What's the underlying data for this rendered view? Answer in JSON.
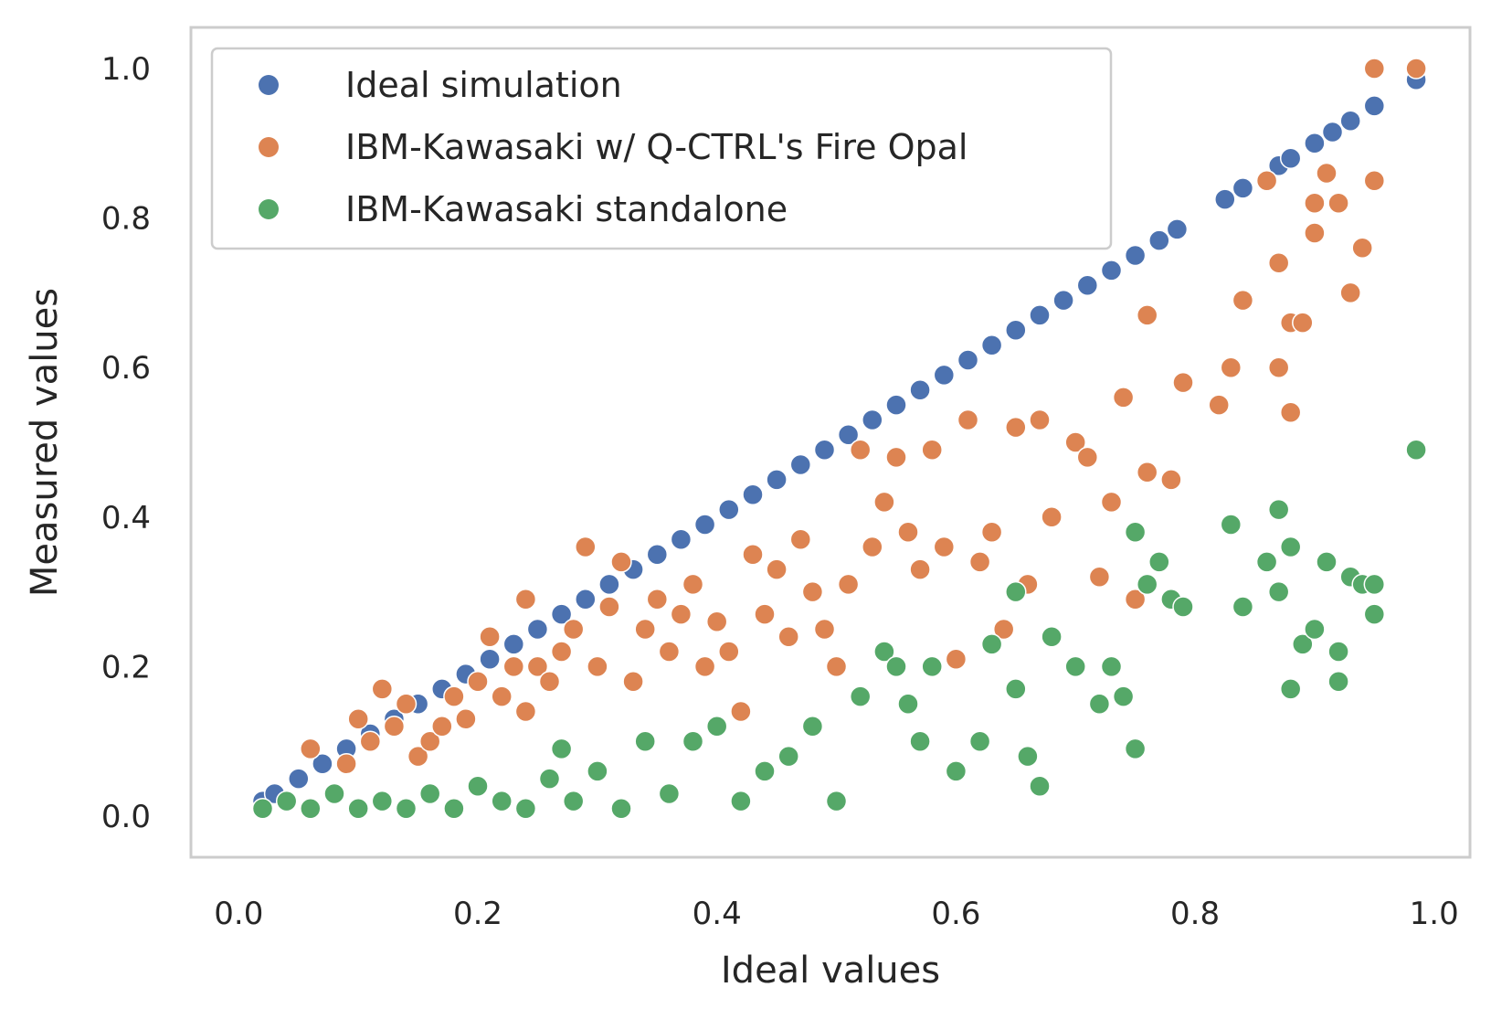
{
  "chart_data": {
    "type": "scatter",
    "title": "",
    "xlabel": "Ideal values",
    "ylabel": "Measured values",
    "xlim": [
      -0.04,
      1.03
    ],
    "ylim": [
      -0.055,
      1.055
    ],
    "grid": false,
    "legend_position": "top-left",
    "x_ticks": [
      0.0,
      0.2,
      0.4,
      0.6,
      0.8,
      1.0
    ],
    "x_tick_labels": [
      "0.0",
      "0.2",
      "0.4",
      "0.6",
      "0.8",
      "1.0"
    ],
    "y_ticks": [
      0.0,
      0.2,
      0.4,
      0.6,
      0.8,
      1.0
    ],
    "y_tick_labels": [
      "0.0",
      "0.2",
      "0.4",
      "0.6",
      "0.8",
      "1.0"
    ],
    "series": [
      {
        "name": "Ideal simulation",
        "color": "#4c72b0",
        "points": [
          [
            0.02,
            0.02
          ],
          [
            0.03,
            0.03
          ],
          [
            0.05,
            0.05
          ],
          [
            0.07,
            0.07
          ],
          [
            0.09,
            0.09
          ],
          [
            0.11,
            0.11
          ],
          [
            0.13,
            0.13
          ],
          [
            0.15,
            0.15
          ],
          [
            0.17,
            0.17
          ],
          [
            0.19,
            0.19
          ],
          [
            0.21,
            0.21
          ],
          [
            0.23,
            0.23
          ],
          [
            0.25,
            0.25
          ],
          [
            0.27,
            0.27
          ],
          [
            0.29,
            0.29
          ],
          [
            0.31,
            0.31
          ],
          [
            0.33,
            0.33
          ],
          [
            0.35,
            0.35
          ],
          [
            0.37,
            0.37
          ],
          [
            0.39,
            0.39
          ],
          [
            0.41,
            0.41
          ],
          [
            0.43,
            0.43
          ],
          [
            0.45,
            0.45
          ],
          [
            0.47,
            0.47
          ],
          [
            0.49,
            0.49
          ],
          [
            0.51,
            0.51
          ],
          [
            0.53,
            0.53
          ],
          [
            0.55,
            0.55
          ],
          [
            0.57,
            0.57
          ],
          [
            0.59,
            0.59
          ],
          [
            0.61,
            0.61
          ],
          [
            0.63,
            0.63
          ],
          [
            0.65,
            0.65
          ],
          [
            0.67,
            0.67
          ],
          [
            0.69,
            0.69
          ],
          [
            0.71,
            0.71
          ],
          [
            0.73,
            0.73
          ],
          [
            0.75,
            0.75
          ],
          [
            0.77,
            0.77
          ],
          [
            0.785,
            0.785
          ],
          [
            0.825,
            0.825
          ],
          [
            0.84,
            0.84
          ],
          [
            0.87,
            0.87
          ],
          [
            0.88,
            0.88
          ],
          [
            0.9,
            0.9
          ],
          [
            0.915,
            0.915
          ],
          [
            0.93,
            0.93
          ],
          [
            0.95,
            0.95
          ],
          [
            0.985,
            0.985
          ]
        ]
      },
      {
        "name": "IBM-Kawasaki w/ Q-CTRL's Fire Opal",
        "color": "#dd8452",
        "points": [
          [
            0.06,
            0.09
          ],
          [
            0.09,
            0.07
          ],
          [
            0.1,
            0.13
          ],
          [
            0.11,
            0.1
          ],
          [
            0.12,
            0.17
          ],
          [
            0.13,
            0.12
          ],
          [
            0.14,
            0.15
          ],
          [
            0.15,
            0.08
          ],
          [
            0.16,
            0.1
          ],
          [
            0.17,
            0.12
          ],
          [
            0.18,
            0.16
          ],
          [
            0.19,
            0.13
          ],
          [
            0.2,
            0.18
          ],
          [
            0.21,
            0.24
          ],
          [
            0.22,
            0.16
          ],
          [
            0.23,
            0.2
          ],
          [
            0.24,
            0.14
          ],
          [
            0.24,
            0.29
          ],
          [
            0.25,
            0.2
          ],
          [
            0.26,
            0.18
          ],
          [
            0.27,
            0.22
          ],
          [
            0.28,
            0.25
          ],
          [
            0.29,
            0.36
          ],
          [
            0.3,
            0.2
          ],
          [
            0.31,
            0.28
          ],
          [
            0.32,
            0.34
          ],
          [
            0.33,
            0.18
          ],
          [
            0.34,
            0.25
          ],
          [
            0.35,
            0.29
          ],
          [
            0.36,
            0.22
          ],
          [
            0.37,
            0.27
          ],
          [
            0.38,
            0.31
          ],
          [
            0.39,
            0.2
          ],
          [
            0.4,
            0.26
          ],
          [
            0.41,
            0.22
          ],
          [
            0.42,
            0.14
          ],
          [
            0.43,
            0.35
          ],
          [
            0.44,
            0.27
          ],
          [
            0.45,
            0.33
          ],
          [
            0.46,
            0.24
          ],
          [
            0.47,
            0.37
          ],
          [
            0.48,
            0.3
          ],
          [
            0.49,
            0.25
          ],
          [
            0.5,
            0.2
          ],
          [
            0.51,
            0.31
          ],
          [
            0.52,
            0.49
          ],
          [
            0.53,
            0.36
          ],
          [
            0.54,
            0.42
          ],
          [
            0.55,
            0.48
          ],
          [
            0.56,
            0.38
          ],
          [
            0.57,
            0.33
          ],
          [
            0.58,
            0.49
          ],
          [
            0.59,
            0.36
          ],
          [
            0.6,
            0.21
          ],
          [
            0.61,
            0.53
          ],
          [
            0.62,
            0.34
          ],
          [
            0.63,
            0.38
          ],
          [
            0.64,
            0.25
          ],
          [
            0.65,
            0.52
          ],
          [
            0.66,
            0.31
          ],
          [
            0.67,
            0.53
          ],
          [
            0.68,
            0.4
          ],
          [
            0.7,
            0.5
          ],
          [
            0.71,
            0.48
          ],
          [
            0.72,
            0.32
          ],
          [
            0.73,
            0.42
          ],
          [
            0.74,
            0.56
          ],
          [
            0.75,
            0.29
          ],
          [
            0.76,
            0.46
          ],
          [
            0.76,
            0.67
          ],
          [
            0.78,
            0.45
          ],
          [
            0.79,
            0.58
          ],
          [
            0.82,
            0.55
          ],
          [
            0.83,
            0.6
          ],
          [
            0.84,
            0.69
          ],
          [
            0.86,
            0.85
          ],
          [
            0.87,
            0.74
          ],
          [
            0.87,
            0.6
          ],
          [
            0.88,
            0.66
          ],
          [
            0.88,
            0.54
          ],
          [
            0.89,
            0.66
          ],
          [
            0.9,
            0.82
          ],
          [
            0.9,
            0.78
          ],
          [
            0.91,
            0.86
          ],
          [
            0.92,
            0.82
          ],
          [
            0.93,
            0.7
          ],
          [
            0.94,
            0.76
          ],
          [
            0.95,
            0.85
          ],
          [
            0.95,
            1.0
          ],
          [
            0.985,
            1.0
          ]
        ]
      },
      {
        "name": "IBM-Kawasaki standalone",
        "color": "#55a868",
        "points": [
          [
            0.02,
            0.01
          ],
          [
            0.04,
            0.02
          ],
          [
            0.06,
            0.01
          ],
          [
            0.08,
            0.03
          ],
          [
            0.1,
            0.01
          ],
          [
            0.12,
            0.02
          ],
          [
            0.14,
            0.01
          ],
          [
            0.16,
            0.03
          ],
          [
            0.18,
            0.01
          ],
          [
            0.2,
            0.04
          ],
          [
            0.22,
            0.02
          ],
          [
            0.24,
            0.01
          ],
          [
            0.26,
            0.05
          ],
          [
            0.27,
            0.09
          ],
          [
            0.28,
            0.02
          ],
          [
            0.3,
            0.06
          ],
          [
            0.32,
            0.01
          ],
          [
            0.34,
            0.1
          ],
          [
            0.36,
            0.03
          ],
          [
            0.38,
            0.1
          ],
          [
            0.4,
            0.12
          ],
          [
            0.42,
            0.02
          ],
          [
            0.44,
            0.06
          ],
          [
            0.46,
            0.08
          ],
          [
            0.48,
            0.12
          ],
          [
            0.5,
            0.02
          ],
          [
            0.52,
            0.16
          ],
          [
            0.54,
            0.22
          ],
          [
            0.55,
            0.2
          ],
          [
            0.56,
            0.15
          ],
          [
            0.57,
            0.1
          ],
          [
            0.58,
            0.2
          ],
          [
            0.6,
            0.06
          ],
          [
            0.62,
            0.1
          ],
          [
            0.63,
            0.23
          ],
          [
            0.65,
            0.3
          ],
          [
            0.65,
            0.17
          ],
          [
            0.66,
            0.08
          ],
          [
            0.67,
            0.04
          ],
          [
            0.68,
            0.24
          ],
          [
            0.7,
            0.2
          ],
          [
            0.72,
            0.15
          ],
          [
            0.73,
            0.2
          ],
          [
            0.74,
            0.16
          ],
          [
            0.75,
            0.38
          ],
          [
            0.75,
            0.09
          ],
          [
            0.76,
            0.31
          ],
          [
            0.77,
            0.34
          ],
          [
            0.78,
            0.29
          ],
          [
            0.79,
            0.28
          ],
          [
            0.83,
            0.39
          ],
          [
            0.84,
            0.28
          ],
          [
            0.86,
            0.34
          ],
          [
            0.87,
            0.41
          ],
          [
            0.87,
            0.3
          ],
          [
            0.88,
            0.36
          ],
          [
            0.88,
            0.17
          ],
          [
            0.89,
            0.23
          ],
          [
            0.9,
            0.25
          ],
          [
            0.91,
            0.34
          ],
          [
            0.92,
            0.18
          ],
          [
            0.92,
            0.22
          ],
          [
            0.93,
            0.32
          ],
          [
            0.94,
            0.31
          ],
          [
            0.95,
            0.27
          ],
          [
            0.95,
            0.31
          ],
          [
            0.985,
            0.49
          ]
        ]
      }
    ]
  }
}
